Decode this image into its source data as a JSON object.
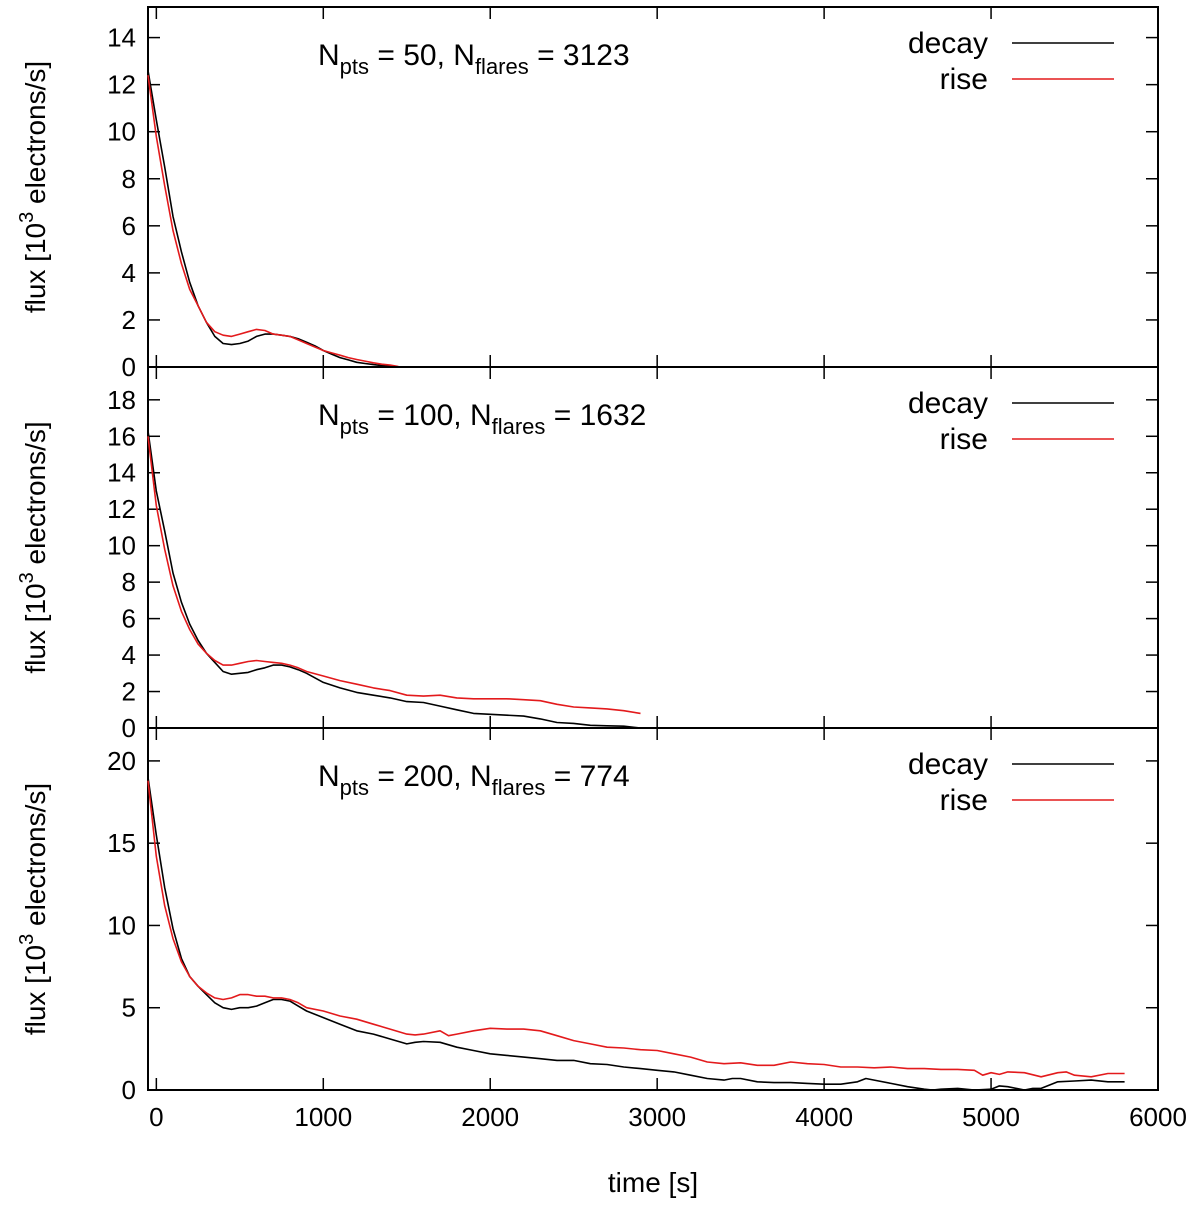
{
  "chart_data": [
    {
      "type": "line",
      "annotation": {
        "text": "N",
        "sub1": "pts",
        "mid": " = 50, N",
        "sub2": "flares",
        "end": " = 3123"
      },
      "ylabel": {
        "pre": "flux [10",
        "sup": "3",
        "post": " electrons/s]"
      },
      "xlabel": "",
      "xlim": [
        -50,
        6000
      ],
      "ylim": [
        0,
        15.3
      ],
      "yticks": [
        0,
        2,
        4,
        6,
        8,
        10,
        12,
        14
      ],
      "xticks": [
        0,
        1000,
        2000,
        3000,
        4000,
        5000,
        6000
      ],
      "show_xtick_labels": false,
      "grid": false,
      "legend": "top-right",
      "series": [
        {
          "name": "decay",
          "color": "#000000",
          "x": [
            -50,
            0,
            50,
            100,
            150,
            200,
            250,
            300,
            350,
            400,
            450,
            500,
            550,
            600,
            650,
            700,
            750,
            800,
            850,
            900,
            950,
            1000,
            1050,
            1100,
            1150,
            1200,
            1250,
            1300,
            1350,
            1400,
            1450
          ],
          "y": [
            12.6,
            10.5,
            8.5,
            6.4,
            4.9,
            3.6,
            2.6,
            1.9,
            1.3,
            1.0,
            0.95,
            1.0,
            1.1,
            1.3,
            1.4,
            1.4,
            1.35,
            1.3,
            1.2,
            1.05,
            0.9,
            0.7,
            0.55,
            0.4,
            0.3,
            0.2,
            0.15,
            0.1,
            0.06,
            0.03,
            0.0
          ]
        },
        {
          "name": "rise",
          "color": "#e31a1c",
          "x": [
            -50,
            0,
            50,
            100,
            150,
            200,
            250,
            300,
            350,
            400,
            450,
            500,
            550,
            600,
            650,
            700,
            750,
            800,
            850,
            900,
            950,
            1000,
            1050,
            1100,
            1150,
            1200,
            1250,
            1300,
            1350,
            1400,
            1450
          ],
          "y": [
            12.4,
            9.8,
            7.7,
            5.8,
            4.4,
            3.3,
            2.6,
            1.9,
            1.5,
            1.35,
            1.3,
            1.4,
            1.5,
            1.6,
            1.55,
            1.4,
            1.35,
            1.3,
            1.15,
            1.0,
            0.85,
            0.7,
            0.6,
            0.5,
            0.4,
            0.32,
            0.25,
            0.18,
            0.12,
            0.08,
            0.02
          ]
        }
      ]
    },
    {
      "type": "line",
      "annotation": {
        "text": "N",
        "sub1": "pts",
        "mid": " = 100, N",
        "sub2": "flares",
        "end": " = 1632"
      },
      "ylabel": {
        "pre": "flux [10",
        "sup": "3",
        "post": " electrons/s]"
      },
      "xlabel": "",
      "xlim": [
        -50,
        6000
      ],
      "ylim": [
        0,
        19.8
      ],
      "yticks": [
        0,
        2,
        4,
        6,
        8,
        10,
        12,
        14,
        16,
        18
      ],
      "xticks": [
        0,
        1000,
        2000,
        3000,
        4000,
        5000,
        6000
      ],
      "show_xtick_labels": false,
      "grid": false,
      "legend": "top-right",
      "series": [
        {
          "name": "decay",
          "color": "#000000",
          "x": [
            -50,
            0,
            50,
            100,
            150,
            200,
            250,
            300,
            350,
            400,
            450,
            500,
            550,
            600,
            650,
            700,
            750,
            800,
            850,
            900,
            1000,
            1100,
            1200,
            1300,
            1400,
            1500,
            1600,
            1700,
            1800,
            1900,
            2000,
            2100,
            2200,
            2300,
            2400,
            2500,
            2600,
            2700,
            2800,
            2900
          ],
          "y": [
            16.3,
            13.0,
            10.8,
            8.5,
            6.9,
            5.7,
            4.8,
            4.1,
            3.6,
            3.1,
            2.95,
            3.0,
            3.05,
            3.2,
            3.3,
            3.45,
            3.45,
            3.35,
            3.2,
            3.0,
            2.5,
            2.2,
            1.95,
            1.8,
            1.65,
            1.45,
            1.4,
            1.2,
            1.0,
            0.8,
            0.75,
            0.7,
            0.65,
            0.5,
            0.3,
            0.25,
            0.15,
            0.12,
            0.1,
            0.0
          ]
        },
        {
          "name": "rise",
          "color": "#e31a1c",
          "x": [
            -50,
            0,
            50,
            100,
            150,
            200,
            250,
            300,
            350,
            400,
            450,
            500,
            550,
            600,
            650,
            700,
            750,
            800,
            850,
            900,
            1000,
            1100,
            1200,
            1300,
            1400,
            1500,
            1600,
            1700,
            1800,
            1900,
            2000,
            2100,
            2200,
            2300,
            2400,
            2500,
            2600,
            2700,
            2800,
            2900
          ],
          "y": [
            16.0,
            12.2,
            9.8,
            7.8,
            6.4,
            5.4,
            4.6,
            4.1,
            3.7,
            3.45,
            3.45,
            3.55,
            3.65,
            3.7,
            3.65,
            3.6,
            3.55,
            3.45,
            3.3,
            3.1,
            2.85,
            2.6,
            2.4,
            2.2,
            2.05,
            1.8,
            1.75,
            1.8,
            1.65,
            1.6,
            1.6,
            1.6,
            1.55,
            1.5,
            1.3,
            1.15,
            1.1,
            1.05,
            0.95,
            0.8
          ]
        }
      ]
    },
    {
      "type": "line",
      "annotation": {
        "text": "N",
        "sub1": "pts",
        "mid": " = 200, N",
        "sub2": "flares",
        "end": " = 774"
      },
      "ylabel": {
        "pre": "flux [10",
        "sup": "3",
        "post": " electrons/s]"
      },
      "xlabel": "time [s]",
      "xlim": [
        -50,
        6000
      ],
      "ylim": [
        0,
        22
      ],
      "yticks": [
        0,
        5,
        10,
        15,
        20
      ],
      "xticks": [
        0,
        1000,
        2000,
        3000,
        4000,
        5000,
        6000
      ],
      "show_xtick_labels": true,
      "grid": false,
      "legend": "top-right",
      "series": [
        {
          "name": "decay",
          "color": "#000000",
          "x": [
            -50,
            0,
            50,
            100,
            150,
            200,
            250,
            300,
            350,
            400,
            450,
            500,
            550,
            600,
            650,
            700,
            750,
            800,
            850,
            900,
            1000,
            1100,
            1200,
            1300,
            1400,
            1500,
            1550,
            1600,
            1700,
            1800,
            1900,
            2000,
            2100,
            2200,
            2300,
            2400,
            2500,
            2600,
            2700,
            2800,
            2900,
            3000,
            3100,
            3200,
            3300,
            3400,
            3450,
            3500,
            3600,
            3700,
            3800,
            3900,
            4000,
            4100,
            4200,
            4250,
            4300,
            4400,
            4500,
            4600,
            4650,
            4700,
            4800,
            4900,
            5000,
            5050,
            5100,
            5200,
            5250,
            5300,
            5400,
            5500,
            5600,
            5700,
            5800
          ],
          "y": [
            19.0,
            15.5,
            12.3,
            9.8,
            8.0,
            6.9,
            6.3,
            5.8,
            5.3,
            5.0,
            4.9,
            5.0,
            5.0,
            5.1,
            5.3,
            5.5,
            5.5,
            5.4,
            5.1,
            4.8,
            4.4,
            4.0,
            3.6,
            3.4,
            3.1,
            2.8,
            2.9,
            2.95,
            2.9,
            2.6,
            2.4,
            2.2,
            2.1,
            2.0,
            1.9,
            1.8,
            1.8,
            1.6,
            1.55,
            1.4,
            1.3,
            1.2,
            1.1,
            0.9,
            0.7,
            0.6,
            0.7,
            0.7,
            0.5,
            0.45,
            0.45,
            0.4,
            0.35,
            0.35,
            0.5,
            0.7,
            0.6,
            0.4,
            0.2,
            0.05,
            0.0,
            0.05,
            0.1,
            0.0,
            0.05,
            0.25,
            0.2,
            0.0,
            0.1,
            0.1,
            0.5,
            0.55,
            0.6,
            0.5,
            0.5
          ]
        },
        {
          "name": "rise",
          "color": "#e31a1c",
          "x": [
            -50,
            0,
            50,
            100,
            150,
            200,
            250,
            300,
            350,
            400,
            450,
            500,
            550,
            600,
            650,
            700,
            750,
            800,
            850,
            900,
            1000,
            1100,
            1200,
            1300,
            1400,
            1500,
            1550,
            1600,
            1700,
            1750,
            1800,
            1900,
            2000,
            2100,
            2200,
            2300,
            2400,
            2500,
            2600,
            2700,
            2800,
            2900,
            3000,
            3100,
            3200,
            3300,
            3400,
            3500,
            3600,
            3700,
            3800,
            3900,
            4000,
            4100,
            4200,
            4300,
            4400,
            4500,
            4600,
            4700,
            4800,
            4900,
            4950,
            5000,
            5050,
            5100,
            5200,
            5300,
            5400,
            5450,
            5500,
            5600,
            5700,
            5800
          ],
          "y": [
            18.8,
            14.2,
            11.2,
            9.2,
            7.8,
            6.9,
            6.3,
            5.9,
            5.6,
            5.5,
            5.6,
            5.8,
            5.8,
            5.7,
            5.7,
            5.6,
            5.6,
            5.5,
            5.3,
            5.0,
            4.8,
            4.5,
            4.3,
            4.0,
            3.7,
            3.4,
            3.35,
            3.4,
            3.6,
            3.3,
            3.4,
            3.6,
            3.75,
            3.7,
            3.7,
            3.6,
            3.3,
            3.0,
            2.8,
            2.6,
            2.55,
            2.45,
            2.4,
            2.2,
            2.0,
            1.7,
            1.6,
            1.65,
            1.5,
            1.5,
            1.7,
            1.6,
            1.55,
            1.4,
            1.4,
            1.35,
            1.4,
            1.3,
            1.3,
            1.25,
            1.25,
            1.2,
            0.9,
            1.05,
            0.95,
            1.1,
            1.05,
            0.8,
            1.05,
            1.1,
            0.9,
            0.8,
            1.0,
            1.0
          ]
        }
      ]
    }
  ]
}
